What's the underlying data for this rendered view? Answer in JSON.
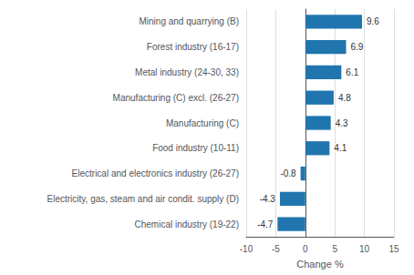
{
  "chart_data": {
    "type": "bar",
    "orientation": "horizontal",
    "categories": [
      "Chemical industry (19-22)",
      "Electricity, gas, steam and air condit. supply (D)",
      "Electrical and electronics industry (26-27)",
      "Food industry (10-11)",
      "Manufacturing (C)",
      "Manufacturing (C) excl. (26-27)",
      "Metal industry (24-30, 33)",
      "Forest industry (16-17)",
      "Mining and quarrying (B)"
    ],
    "values": [
      -4.7,
      -4.3,
      -0.8,
      4.1,
      4.3,
      4.8,
      6.1,
      6.9,
      9.6
    ],
    "color": "#2175AE",
    "xlabel": "Change %",
    "xlim": [
      -10,
      15
    ],
    "xticks": [
      -10,
      -5,
      0,
      5,
      10,
      15
    ],
    "grid": true,
    "data_labels": true
  }
}
